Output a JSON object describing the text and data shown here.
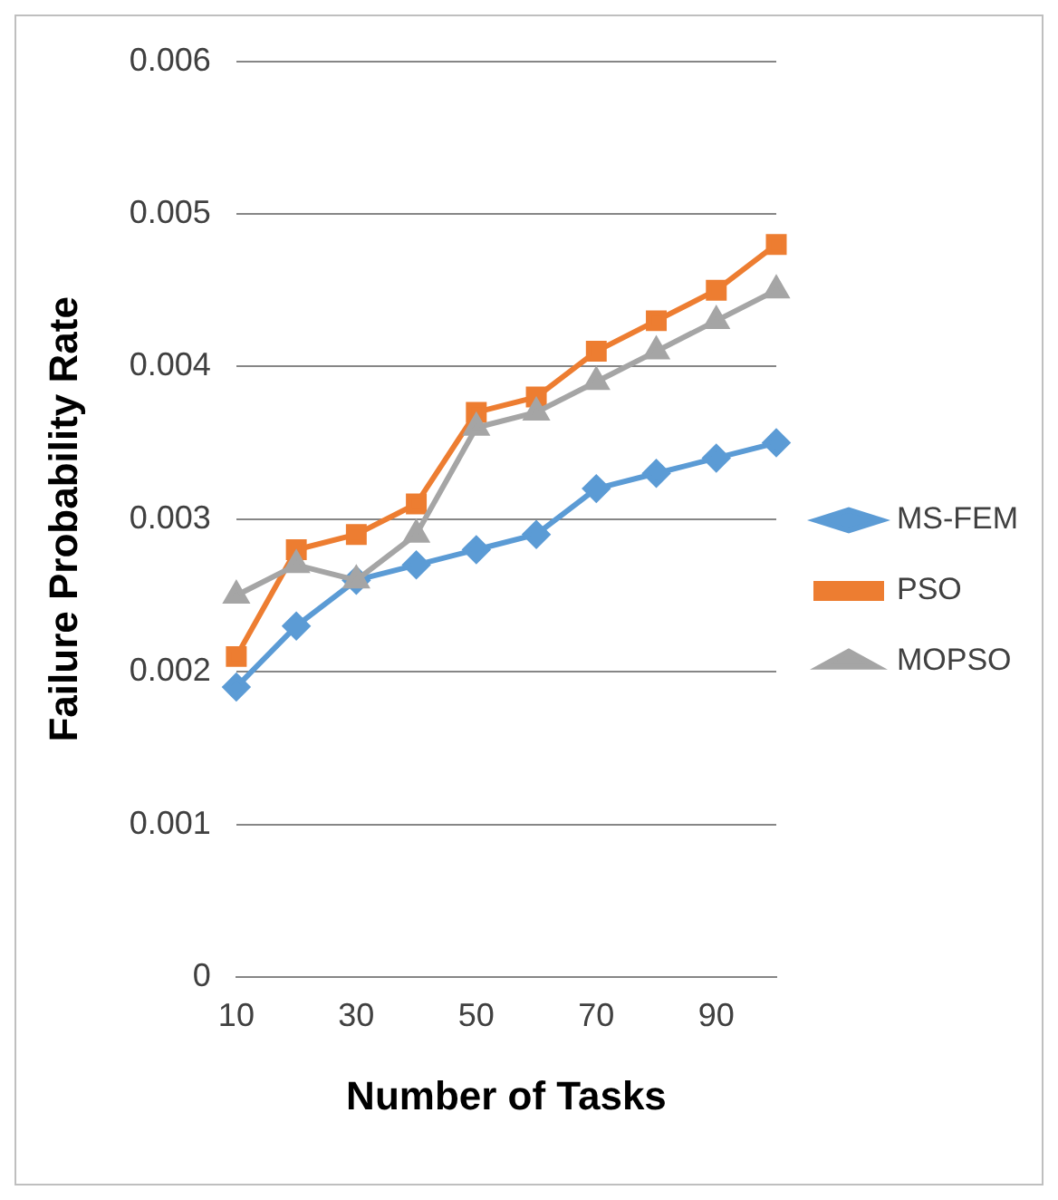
{
  "chart_data": {
    "type": "line",
    "xlabel": "Number of Tasks",
    "ylabel": "Failure Probability Rate",
    "categories": [
      "10",
      null,
      "30",
      null,
      "50",
      null,
      "70",
      null,
      "90",
      null
    ],
    "series": [
      {
        "name": "MS-FEM",
        "color": "#5b9bd5",
        "marker": "diamond",
        "values": [
          0.0019,
          0.0023,
          0.0026,
          0.0027,
          0.0028,
          0.0029,
          0.0032,
          0.0033,
          0.0034,
          0.0035
        ]
      },
      {
        "name": "PSO",
        "color": "#ed7d31",
        "marker": "square",
        "values": [
          0.0021,
          0.0028,
          0.0029,
          0.0031,
          0.0037,
          0.0038,
          0.0041,
          0.0043,
          0.0045,
          0.0048
        ]
      },
      {
        "name": "MOPSO",
        "color": "#a5a5a5",
        "marker": "triangle",
        "values": [
          0.0025,
          0.0027,
          0.0026,
          0.0029,
          0.0036,
          0.0037,
          0.0039,
          0.0041,
          0.0043,
          0.0045
        ]
      }
    ],
    "ylim": [
      0,
      0.006
    ],
    "yticks": [
      0,
      0.001,
      0.002,
      0.003,
      0.004,
      0.005,
      0.006
    ],
    "grid": "y",
    "legend": "right",
    "line_style": "solid"
  }
}
